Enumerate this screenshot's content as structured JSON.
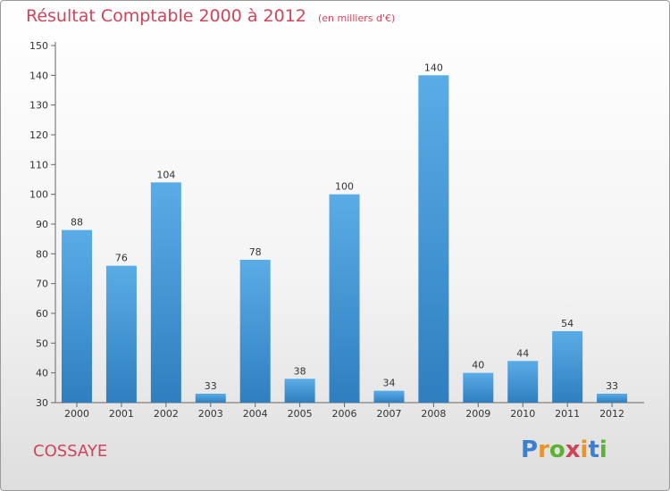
{
  "chart_data": {
    "type": "bar",
    "title": "Résultat Comptable 2000 à 2012",
    "subtitle": "(en milliers d'€)",
    "categories": [
      "2000",
      "2001",
      "2002",
      "2003",
      "2004",
      "2005",
      "2006",
      "2007",
      "2008",
      "2009",
      "2010",
      "2011",
      "2012"
    ],
    "values": [
      88,
      76,
      104,
      33,
      78,
      38,
      100,
      34,
      140,
      40,
      44,
      54,
      33
    ],
    "ylim": [
      30,
      150
    ],
    "yticks": [
      30,
      40,
      50,
      60,
      70,
      80,
      90,
      100,
      110,
      120,
      130,
      140,
      150
    ],
    "grid": false,
    "bar_color_top": "#5aace6",
    "bar_color_bottom": "#2f7fc0"
  },
  "place_name": "COSSAYE",
  "brand": {
    "letters": [
      "P",
      "r",
      "o",
      "x",
      "i",
      "t",
      "i"
    ],
    "colors": [
      "#3c7fd1",
      "#e8942a",
      "#5bb234",
      "#d0445a",
      "#e8942a",
      "#3c7fd1",
      "#5bb234"
    ]
  }
}
